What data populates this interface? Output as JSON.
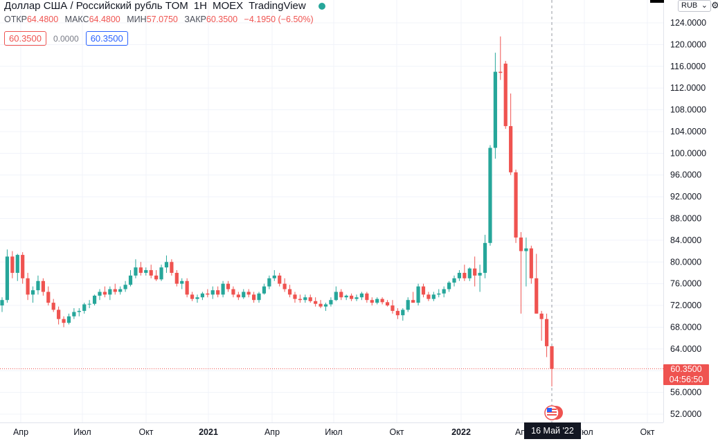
{
  "header": {
    "title": "Доллар США / Российский рубль TOM",
    "interval": "1Н",
    "exchange": "MOEX",
    "brand": "TradingView",
    "status_color": "#26a69a"
  },
  "ohlc": {
    "open_label": "ОТКР",
    "open_value": "64.4800",
    "high_label": "МАКС",
    "high_value": "64.4800",
    "low_label": "МИН",
    "low_value": "57.0750",
    "close_label": "ЗАКР",
    "close_value": "60.3500",
    "change": "−4.1950 (−6.50%)"
  },
  "badges": {
    "sell": "60.3500",
    "spread": "0.0000",
    "buy": "60.3500"
  },
  "currency": "RUB",
  "last_price": {
    "price": "60.3500",
    "countdown": "04:56:50"
  },
  "crosshair_date": "16 Май '22",
  "colors": {
    "up": "#26a69a",
    "down": "#ef5350",
    "grid": "#f0f3fa",
    "axis_text": "#131722",
    "crosshair": "#9598a1"
  },
  "chart_data": {
    "type": "candlestick",
    "y_ticks": [
      "52.0000",
      "56.0000",
      "60.0000",
      "64.0000",
      "68.0000",
      "72.0000",
      "76.0000",
      "80.0000",
      "84.0000",
      "88.0000",
      "92.0000",
      "96.0000",
      "100.0000",
      "104.0000",
      "108.0000",
      "112.0000",
      "116.0000",
      "120.0000",
      "124.0000"
    ],
    "x_ticks": [
      "Апр",
      "Июл",
      "Окт",
      "2021",
      "Апр",
      "Июл",
      "Окт",
      "2022",
      "Апр",
      "Июл",
      "Окт"
    ],
    "x_ticks_bold": [
      false,
      false,
      false,
      true,
      false,
      false,
      false,
      true,
      false,
      false,
      false
    ],
    "ylim": [
      50,
      128
    ],
    "candles": [
      [
        72.0,
        73.5,
        70.8,
        73.0
      ],
      [
        73.0,
        82.3,
        72.5,
        81.0
      ],
      [
        81.0,
        82.0,
        77.0,
        78.0
      ],
      [
        78.0,
        81.5,
        76.5,
        81.3
      ],
      [
        81.3,
        81.8,
        76.0,
        77.0
      ],
      [
        77.0,
        78.0,
        73.0,
        74.0
      ],
      [
        74.0,
        75.5,
        72.5,
        74.8
      ],
      [
        74.8,
        77.5,
        74.0,
        76.5
      ],
      [
        76.5,
        77.0,
        73.8,
        74.5
      ],
      [
        74.5,
        75.5,
        72.0,
        72.5
      ],
      [
        72.5,
        73.2,
        70.8,
        71.2
      ],
      [
        71.2,
        71.8,
        68.5,
        69.5
      ],
      [
        69.5,
        70.0,
        68.0,
        68.8
      ],
      [
        68.8,
        70.5,
        68.5,
        70.0
      ],
      [
        70.0,
        71.5,
        69.5,
        70.8
      ],
      [
        70.8,
        71.5,
        70.0,
        71.0
      ],
      [
        71.0,
        72.5,
        70.5,
        72.2
      ],
      [
        72.2,
        73.0,
        71.5,
        72.3
      ],
      [
        72.3,
        74.0,
        72.0,
        73.8
      ],
      [
        73.8,
        75.0,
        73.0,
        74.5
      ],
      [
        74.5,
        75.5,
        73.5,
        74.0
      ],
      [
        74.0,
        75.5,
        73.0,
        75.0
      ],
      [
        75.0,
        76.0,
        74.0,
        74.5
      ],
      [
        74.5,
        75.5,
        74.0,
        75.0
      ],
      [
        75.0,
        76.5,
        74.5,
        75.8
      ],
      [
        75.8,
        78.5,
        75.5,
        77.5
      ],
      [
        77.5,
        80.5,
        77.0,
        79.0
      ],
      [
        79.0,
        80.0,
        77.5,
        78.0
      ],
      [
        78.0,
        79.0,
        77.5,
        78.5
      ],
      [
        78.5,
        79.5,
        77.0,
        77.5
      ],
      [
        77.5,
        78.5,
        76.5,
        76.8
      ],
      [
        76.8,
        79.5,
        76.5,
        79.0
      ],
      [
        79.0,
        81.2,
        78.0,
        80.0
      ],
      [
        80.0,
        80.5,
        77.5,
        78.0
      ],
      [
        78.0,
        78.5,
        75.5,
        76.0
      ],
      [
        76.0,
        77.0,
        75.0,
        76.5
      ],
      [
        76.5,
        77.0,
        73.5,
        74.0
      ],
      [
        74.0,
        74.5,
        72.8,
        73.2
      ],
      [
        73.2,
        74.0,
        72.5,
        73.5
      ],
      [
        73.5,
        74.5,
        73.0,
        74.2
      ],
      [
        74.2,
        75.0,
        73.5,
        74.0
      ],
      [
        74.0,
        75.5,
        73.2,
        74.8
      ],
      [
        74.8,
        75.5,
        73.5,
        74.0
      ],
      [
        74.0,
        76.5,
        73.5,
        76.0
      ],
      [
        76.0,
        76.5,
        74.5,
        75.0
      ],
      [
        75.0,
        75.5,
        73.5,
        74.0
      ],
      [
        74.0,
        74.5,
        73.0,
        73.5
      ],
      [
        73.5,
        75.0,
        73.2,
        74.5
      ],
      [
        74.5,
        75.0,
        73.5,
        74.0
      ],
      [
        74.0,
        74.5,
        72.5,
        73.0
      ],
      [
        73.0,
        74.5,
        72.5,
        74.2
      ],
      [
        74.2,
        76.0,
        74.0,
        75.5
      ],
      [
        75.5,
        77.5,
        75.0,
        77.0
      ],
      [
        77.0,
        78.5,
        76.5,
        77.5
      ],
      [
        77.5,
        78.0,
        75.5,
        76.0
      ],
      [
        76.0,
        77.0,
        74.5,
        75.0
      ],
      [
        75.0,
        75.8,
        73.5,
        74.0
      ],
      [
        74.0,
        74.5,
        72.5,
        73.2
      ],
      [
        73.2,
        74.0,
        72.5,
        73.0
      ],
      [
        73.0,
        74.0,
        72.5,
        73.5
      ],
      [
        73.5,
        74.0,
        72.5,
        72.8
      ],
      [
        72.8,
        73.5,
        71.8,
        72.3
      ],
      [
        72.3,
        73.0,
        71.5,
        71.8
      ],
      [
        71.8,
        72.5,
        71.0,
        72.2
      ],
      [
        72.2,
        73.5,
        71.8,
        73.0
      ],
      [
        73.0,
        75.5,
        72.8,
        74.5
      ],
      [
        74.5,
        75.0,
        73.0,
        73.5
      ],
      [
        73.5,
        74.0,
        73.0,
        73.8
      ],
      [
        73.8,
        74.2,
        72.8,
        73.2
      ],
      [
        73.2,
        74.0,
        72.8,
        73.5
      ],
      [
        73.5,
        74.5,
        73.0,
        74.2
      ],
      [
        74.2,
        74.5,
        72.5,
        73.0
      ],
      [
        73.0,
        73.5,
        72.0,
        72.5
      ],
      [
        72.5,
        73.5,
        72.2,
        73.2
      ],
      [
        73.2,
        73.5,
        72.2,
        72.6
      ],
      [
        72.6,
        73.0,
        71.8,
        72.0
      ],
      [
        72.0,
        73.0,
        70.5,
        71.0
      ],
      [
        71.0,
        71.5,
        69.5,
        70.2
      ],
      [
        70.2,
        71.5,
        69.2,
        71.2
      ],
      [
        71.2,
        73.5,
        70.8,
        73.0
      ],
      [
        73.0,
        74.5,
        72.5,
        72.5
      ],
      [
        72.5,
        76.0,
        72.0,
        75.5
      ],
      [
        75.5,
        76.0,
        73.5,
        74.0
      ],
      [
        74.0,
        74.5,
        72.8,
        73.2
      ],
      [
        73.2,
        74.5,
        72.8,
        74.0
      ],
      [
        74.0,
        75.0,
        73.5,
        74.2
      ],
      [
        74.2,
        75.5,
        73.5,
        75.0
      ],
      [
        75.0,
        76.5,
        74.5,
        76.2
      ],
      [
        76.2,
        77.5,
        75.5,
        77.0
      ],
      [
        77.0,
        78.5,
        76.5,
        78.0
      ],
      [
        78.0,
        79.5,
        76.5,
        77.0
      ],
      [
        77.0,
        79.0,
        76.5,
        78.8
      ],
      [
        78.8,
        81.0,
        75.5,
        77.5
      ],
      [
        77.5,
        79.5,
        74.5,
        78.0
      ],
      [
        78.0,
        85.0,
        77.0,
        83.5
      ],
      [
        83.5,
        101.5,
        83.0,
        101.0
      ],
      [
        101.0,
        118.5,
        99.0,
        115.0
      ],
      [
        115.0,
        121.5,
        113.5,
        114.8
      ],
      [
        116.5,
        117.0,
        104.5,
        105.0
      ],
      [
        105.0,
        111.0,
        96.0,
        96.5
      ],
      [
        96.5,
        97.0,
        83.5,
        84.5
      ],
      [
        84.5,
        85.5,
        70.5,
        82.0
      ],
      [
        82.0,
        84.5,
        75.5,
        82.5
      ],
      [
        82.5,
        83.0,
        76.0,
        77.0
      ],
      [
        77.0,
        81.5,
        70.5,
        70.5
      ],
      [
        70.5,
        71.0,
        65.5,
        69.5
      ],
      [
        69.5,
        70.5,
        62.5,
        64.5
      ],
      [
        64.5,
        64.5,
        57.1,
        60.35
      ]
    ]
  }
}
